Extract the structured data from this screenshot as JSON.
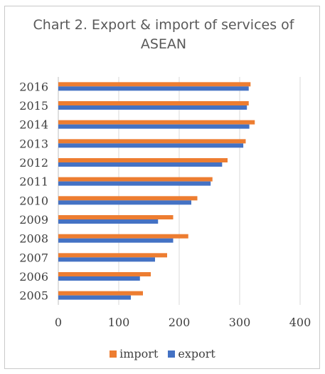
{
  "chart_data": {
    "type": "bar",
    "orientation": "horizontal",
    "title": "Chart 2. Export & import of services of ASEAN",
    "title_lines": [
      "Chart 2. Export & import of services of",
      "ASEAN"
    ],
    "categories": [
      "2016",
      "2015",
      "2014",
      "2013",
      "2012",
      "2011",
      "2010",
      "2009",
      "2008",
      "2007",
      "2006",
      "2005"
    ],
    "series": [
      {
        "name": "import",
        "color": "#ed7d31",
        "values": [
          318,
          315,
          325,
          310,
          280,
          255,
          230,
          190,
          215,
          180,
          153,
          140
        ]
      },
      {
        "name": "export",
        "color": "#4472c4",
        "values": [
          315,
          312,
          316,
          306,
          271,
          252,
          220,
          165,
          190,
          160,
          135,
          120
        ]
      }
    ],
    "xlim": [
      0,
      400
    ],
    "xticks": [
      "0",
      "100",
      "200",
      "300",
      "400"
    ],
    "grid": true,
    "legend_position": "bottom"
  }
}
